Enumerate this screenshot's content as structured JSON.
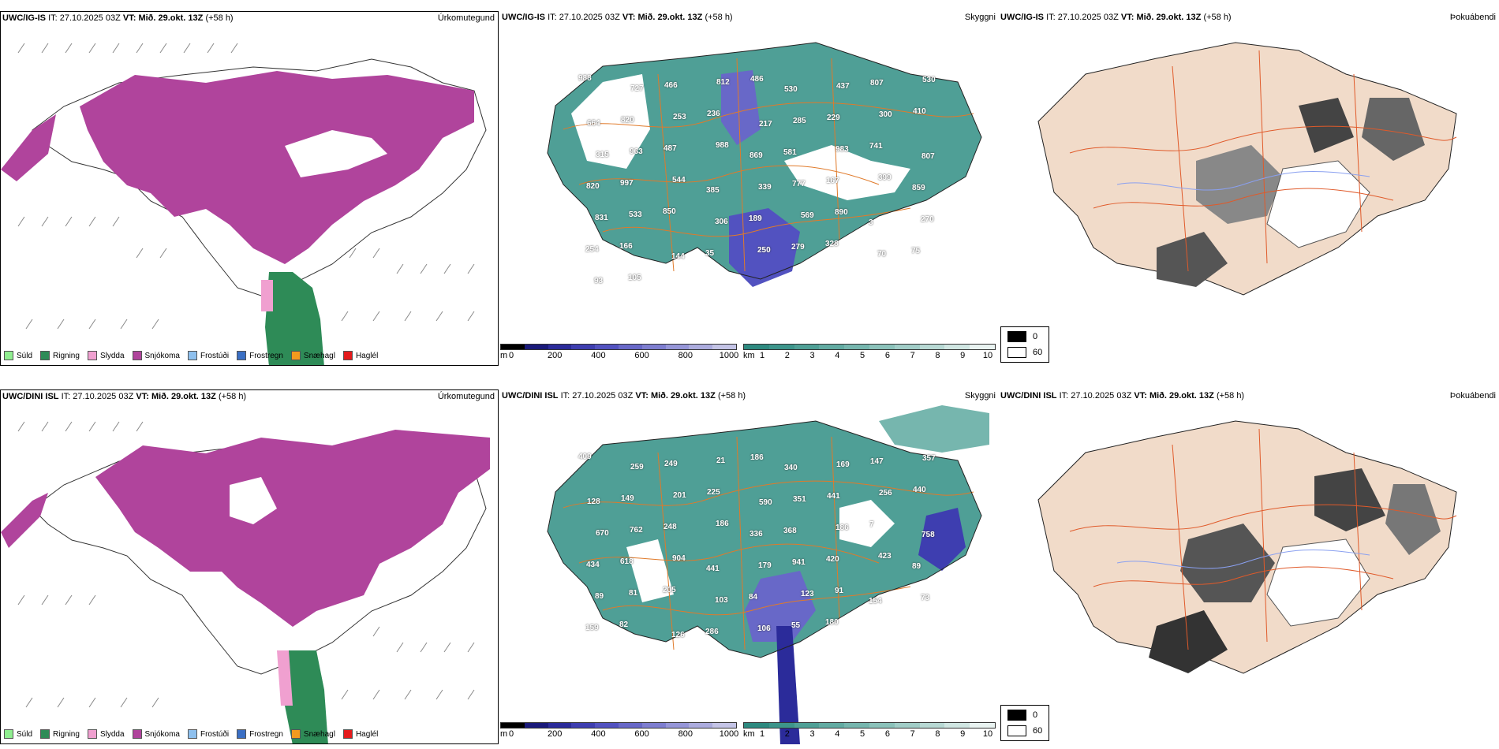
{
  "rows": [
    {
      "model": "UWC/IG-IS",
      "it_label": "IT:",
      "it_value": "27.10.2025 03Z",
      "vt_label": "VT:",
      "vt_value": "Mið. 29.okt. 13Z",
      "lead": "(+58 h)"
    },
    {
      "model": "UWC/DINI ISL",
      "it_label": "IT:",
      "it_value": "27.10.2025 03Z",
      "vt_label": "VT:",
      "vt_value": "Mið. 29.okt. 13Z",
      "lead": "(+58 h)"
    }
  ],
  "panel_titles": {
    "precip": "Úrkomutegund",
    "visibility": "Skyggni",
    "fog": "Þokuábendi"
  },
  "precip_legend": [
    {
      "label": "Súld",
      "color": "#90ee90"
    },
    {
      "label": "Rigning",
      "color": "#2e8b57"
    },
    {
      "label": "Slydda",
      "color": "#f0a0d0"
    },
    {
      "label": "Snjókoma",
      "color": "#b0449c"
    },
    {
      "label": "Frostúði",
      "color": "#8ec0ee"
    },
    {
      "label": "Frostregn",
      "color": "#3a6fc4"
    },
    {
      "label": "Snæhagl",
      "color": "#f39a1e"
    },
    {
      "label": "Haglél",
      "color": "#e41a1c"
    }
  ],
  "colorbar_height": {
    "unit": "m",
    "ticks": [
      "0",
      "200",
      "400",
      "600",
      "800",
      "1000"
    ],
    "colors": [
      "#000000",
      "#1a1a7a",
      "#2b2b9a",
      "#3e3eb0",
      "#5252c0",
      "#6868c8",
      "#7e7ed0",
      "#9696d8",
      "#acacde",
      "#c4c4e6"
    ]
  },
  "colorbar_km": {
    "unit": "km",
    "ticks": [
      "1",
      "2",
      "3",
      "4",
      "5",
      "6",
      "7",
      "8",
      "9",
      "10"
    ],
    "colors": [
      "#2e8a80",
      "#3d958b",
      "#4fa096",
      "#62aba2",
      "#76b6ae",
      "#8bc2ba",
      "#a1cdc7",
      "#b8d9d4",
      "#d0e6e2",
      "#e9f3f1"
    ]
  },
  "fog_legend": [
    {
      "label": "0",
      "color": "#000000"
    },
    {
      "label": "60",
      "color": "#ffffff"
    }
  ],
  "vis_labels_top": [
    "988",
    "727",
    "466",
    "812",
    "486",
    "530",
    "437",
    "807",
    "530",
    "664",
    "820",
    "253",
    "236",
    "217",
    "285",
    "229",
    "300",
    "410",
    "315",
    "963",
    "487",
    "988",
    "869",
    "581",
    "983",
    "741",
    "807",
    "820",
    "997",
    "544",
    "385",
    "339",
    "777",
    "167",
    "399",
    "859",
    "831",
    "533",
    "850",
    "306",
    "189",
    "569",
    "890",
    "3",
    "270",
    "254",
    "166",
    "144",
    "35",
    "250",
    "279",
    "328",
    "70",
    "75",
    "93",
    "105"
  ],
  "vis_labels_bottom": [
    "409",
    "259",
    "249",
    "21",
    "186",
    "340",
    "169",
    "147",
    "357",
    "128",
    "149",
    "201",
    "225",
    "590",
    "351",
    "441",
    "256",
    "440",
    "670",
    "762",
    "248",
    "186",
    "336",
    "368",
    "186",
    "7",
    "758",
    "434",
    "618",
    "904",
    "441",
    "179",
    "941",
    "420",
    "423",
    "89",
    "89",
    "81",
    "205",
    "103",
    "84",
    "123",
    "91",
    "154",
    "73",
    "159",
    "82",
    "126",
    "286",
    "106",
    "55",
    "180"
  ]
}
